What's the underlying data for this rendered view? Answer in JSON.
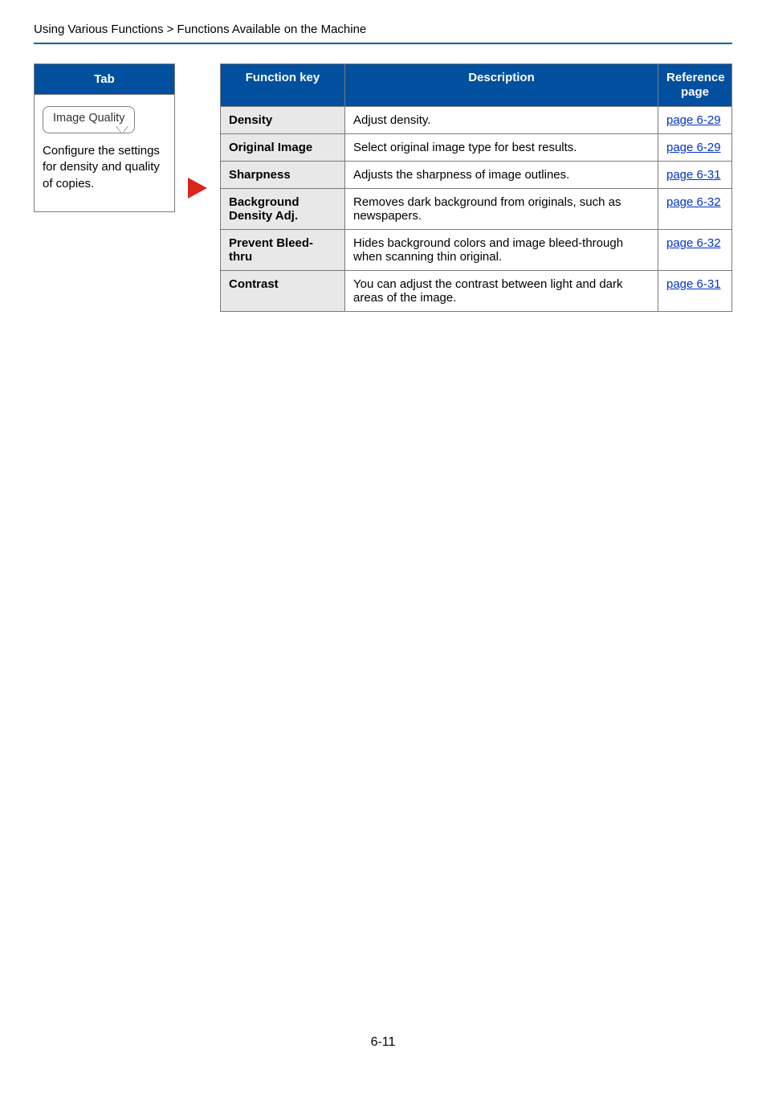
{
  "breadcrumb": "Using Various Functions > Functions Available on the Machine",
  "left": {
    "header": "Tab",
    "button_label": "Image Quality",
    "description": "Configure the settings for density and quality of copies."
  },
  "table": {
    "headers": {
      "fn": "Function key",
      "desc": "Description",
      "ref": "Reference page"
    },
    "rows": [
      {
        "fn": "Density",
        "desc": "Adjust density.",
        "ref": "page 6-29"
      },
      {
        "fn": "Original Image",
        "desc": "Select original image type for best results.",
        "ref": "page 6-29"
      },
      {
        "fn": "Sharpness",
        "desc": "Adjusts the sharpness of image outlines.",
        "ref": "page 6-31"
      },
      {
        "fn": "Background Density Adj.",
        "desc": "Removes dark background from originals, such as newspapers.",
        "ref": "page 6-32"
      },
      {
        "fn": "Prevent Bleed-thru",
        "desc": "Hides background colors and image bleed-through when scanning thin original.",
        "ref": "page 6-32"
      },
      {
        "fn": "Contrast",
        "desc": "You can adjust the contrast between light and dark areas of the image.",
        "ref": "page 6-31"
      }
    ]
  },
  "colors": {
    "header_bg": "#00509f",
    "link": "#0033cc",
    "arrow": "#d9261c",
    "fn_bg": "#e8e8e8",
    "border": "#7a7a7a"
  },
  "col_widths": {
    "fn": "155px",
    "ref": "92px"
  },
  "page_number": "6-11"
}
